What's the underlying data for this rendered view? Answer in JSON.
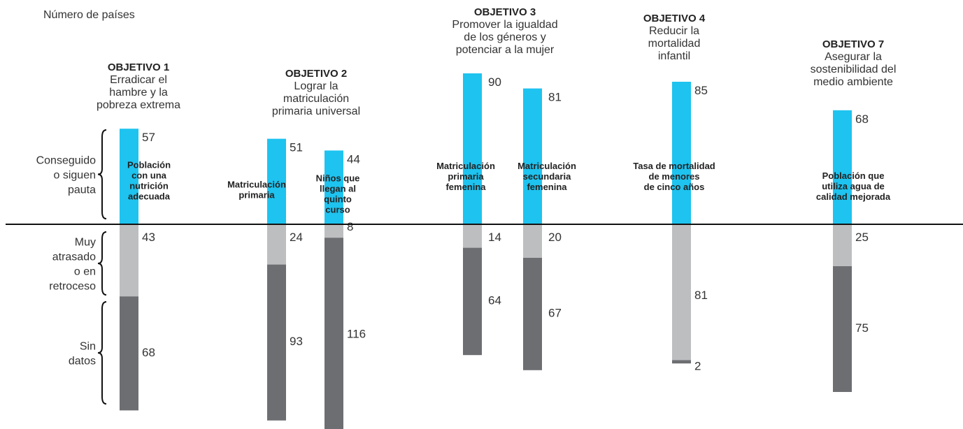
{
  "chart_data": {
    "type": "bar",
    "ylabel": "Número de países",
    "status_categories": [
      "Conseguido o siguen pauta",
      "Muy atrasado o en retroceso",
      "Sin datos"
    ],
    "category_labels": [
      [
        "Conseguido",
        "o siguen",
        "pauta"
      ],
      [
        "Muy",
        "atrasado",
        "o en",
        "retroceso"
      ],
      [
        "Sin",
        "datos"
      ]
    ],
    "colors": {
      "achieved": "#1ec3ef",
      "off_track": "#bcbec0",
      "no_data": "#6d6e71"
    },
    "goals": [
      {
        "title": "OBJETIVO 1",
        "desc": [
          "Erradicar el",
          "hambre y la",
          "pobreza extrema"
        ],
        "indicators": [
          {
            "label": [
              "Población",
              "con una",
              "nutrición",
              "adecuada"
            ],
            "values": [
              57,
              43,
              68
            ]
          }
        ]
      },
      {
        "title": "OBJETIVO 2",
        "desc": [
          "Lograr la",
          "matriculación",
          "primaria universal"
        ],
        "indicators": [
          {
            "label": [
              "Matriculación",
              "primaria"
            ],
            "values": [
              51,
              24,
              93
            ]
          },
          {
            "label": [
              "Niños que",
              "llegan al",
              "quinto",
              "curso"
            ],
            "values": [
              44,
              8,
              116
            ]
          }
        ]
      },
      {
        "title": "OBJETIVO 3",
        "desc": [
          "Promover la igualdad",
          "de los géneros  y",
          "potenciar a la mujer"
        ],
        "indicators": [
          {
            "label": [
              "Matriculación",
              "primaria",
              "femenina"
            ],
            "values": [
              90,
              14,
              64
            ]
          },
          {
            "label": [
              "Matriculación",
              "secundaria",
              "femenina"
            ],
            "values": [
              81,
              20,
              67
            ]
          }
        ]
      },
      {
        "title": "OBJETIVO 4",
        "desc": [
          "Reducir la",
          "mortalidad",
          "infantil"
        ],
        "indicators": [
          {
            "label": [
              "Tasa de mortalidad",
              "de menores",
              "de cinco años"
            ],
            "values": [
              85,
              81,
              2
            ]
          }
        ]
      },
      {
        "title": "OBJETIVO 7",
        "desc": [
          "Asegurar la",
          "sostenibilidad del",
          "medio ambiente"
        ],
        "indicators": [
          {
            "label": [
              "Población que",
              "utiliza agua de",
              "calidad mejorada"
            ],
            "values": [
              68,
              25,
              75
            ]
          }
        ]
      }
    ]
  }
}
